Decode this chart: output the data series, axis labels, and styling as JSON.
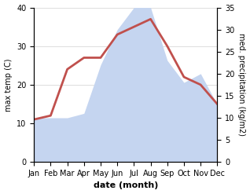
{
  "months": [
    "Jan",
    "Feb",
    "Mar",
    "Apr",
    "May",
    "Jun",
    "Jul",
    "Aug",
    "Sep",
    "Oct",
    "Nov",
    "Dec"
  ],
  "temp": [
    11,
    12,
    24,
    27,
    27,
    33,
    35,
    37,
    30,
    22,
    20,
    15
  ],
  "precip_right": [
    10,
    10,
    10,
    11,
    22,
    30,
    35,
    35,
    23,
    18,
    20,
    13
  ],
  "temp_color": "#c0504d",
  "precip_fill_color": "#c5d5f0",
  "background_color": "#ffffff",
  "left_ylim": [
    0,
    40
  ],
  "right_ylim": [
    0,
    35
  ],
  "left_yticks": [
    0,
    10,
    20,
    30,
    40
  ],
  "right_yticks": [
    0,
    5,
    10,
    15,
    20,
    25,
    30,
    35
  ],
  "left_ylabel": "max temp (C)",
  "right_ylabel": "med. precipitation (kg/m2)",
  "xlabel": "date (month)",
  "temp_linewidth": 2.0,
  "grid_color": "#d0d0d0"
}
